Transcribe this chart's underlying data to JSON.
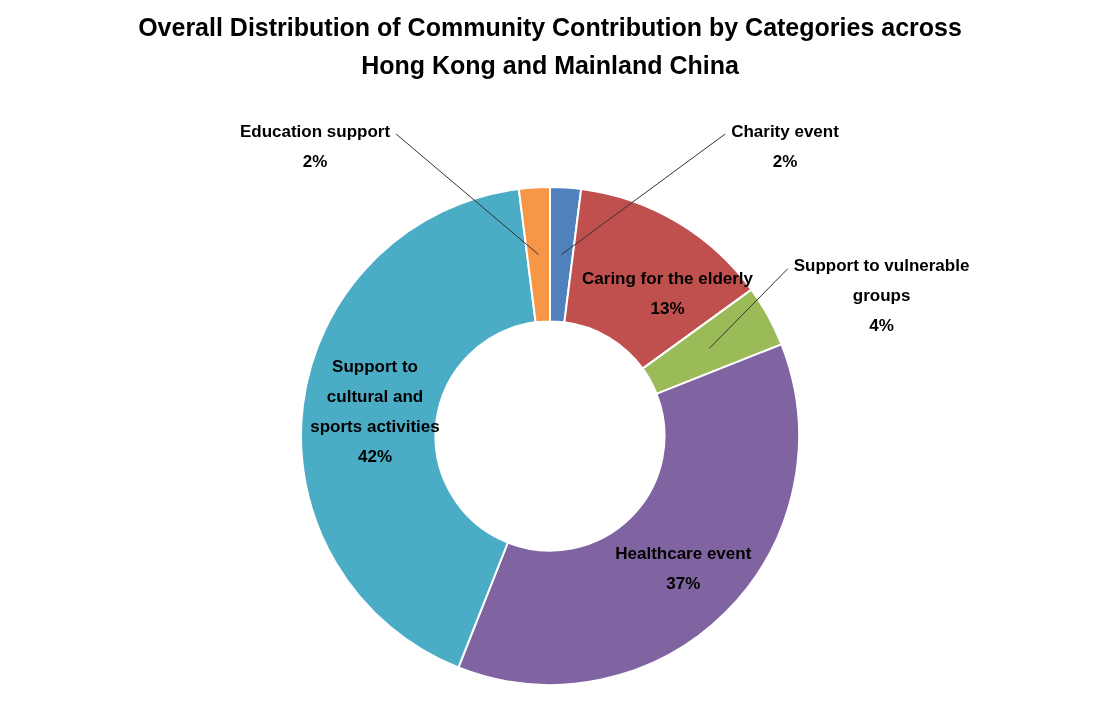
{
  "chart_data": {
    "type": "donut",
    "title": "Overall Distribution of Community Contribution by Categories across Hong Kong and Mainland China",
    "categories": [
      "Charity event",
      "Caring for the elderly",
      "Support to vulnerable groups",
      "Healthcare event",
      "Support to cultural and sports activities",
      "Education support"
    ],
    "values": [
      2,
      13,
      4,
      37,
      42,
      2
    ],
    "value_labels": [
      "2%",
      "13%",
      "4%",
      "37%",
      "42%",
      "2%"
    ],
    "colors": [
      "#4f81bd",
      "#c0504d",
      "#9bbb59",
      "#8064a2",
      "#4bacc6",
      "#f79646"
    ],
    "legend": false
  }
}
